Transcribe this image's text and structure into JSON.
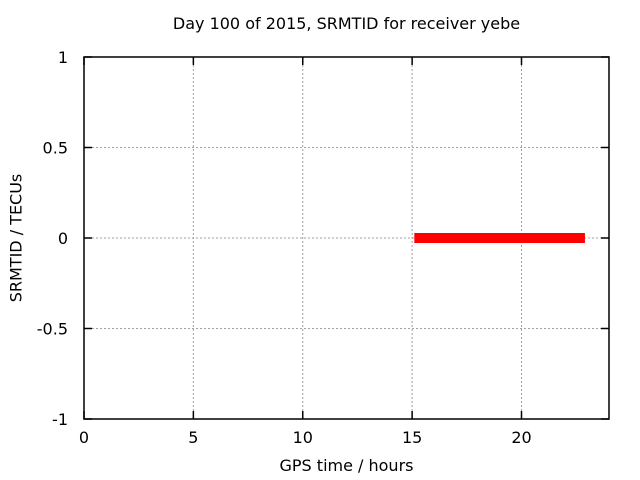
{
  "chart_data": {
    "type": "line",
    "title": "Day 100 of 2015, SRMTID for receiver yebe",
    "xlabel": "GPS time / hours",
    "ylabel": "SRMTID / TECUs",
    "xlim": [
      0,
      24
    ],
    "ylim": [
      -1,
      1
    ],
    "xticks": {
      "values": [
        0,
        5,
        10,
        15,
        20
      ],
      "labels": [
        "0",
        "5",
        "10",
        "15",
        "20"
      ]
    },
    "yticks": {
      "values": [
        -1,
        -0.5,
        0,
        0.5,
        1
      ],
      "labels": [
        "-1",
        "-0.5",
        "0",
        "0.5",
        "1"
      ]
    },
    "grid": true,
    "legend": "none",
    "series": [
      {
        "name": "SRMTID",
        "color": "#ff0000",
        "linewidth": 10,
        "points": [
          [
            15.1,
            0
          ],
          [
            22.9,
            0
          ]
        ]
      }
    ]
  },
  "styles": {
    "background": "#ffffff",
    "border_color": "#000000",
    "grid_color": "#a0a0a0",
    "text_color": "#000000"
  }
}
